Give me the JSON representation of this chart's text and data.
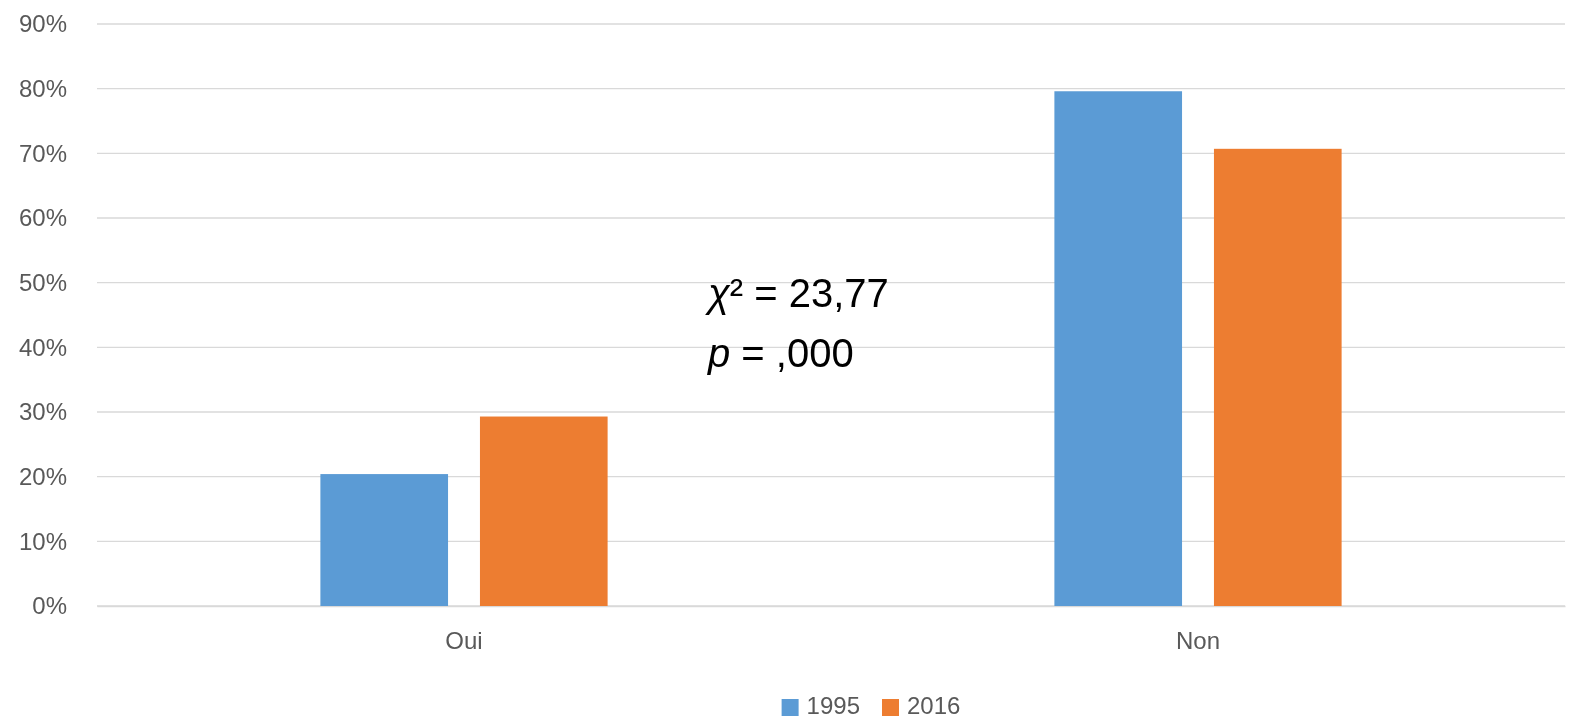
{
  "chart_data": {
    "type": "bar",
    "categories": [
      "Oui",
      "Non"
    ],
    "series": [
      {
        "name": "1995",
        "color": "#5b9bd5",
        "values": [
          20.4,
          79.6
        ]
      },
      {
        "name": "2016",
        "color": "#ed7d31",
        "values": [
          29.3,
          70.7
        ]
      }
    ],
    "ylim": [
      0,
      90
    ],
    "yticks": [
      {
        "value": 0,
        "label": "0%"
      },
      {
        "value": 10,
        "label": "10%"
      },
      {
        "value": 20,
        "label": "20%"
      },
      {
        "value": 30,
        "label": "30%"
      },
      {
        "value": 40,
        "label": "40%"
      },
      {
        "value": 50,
        "label": "50%"
      },
      {
        "value": 60,
        "label": "60%"
      },
      {
        "value": 70,
        "label": "70%"
      },
      {
        "value": 80,
        "label": "80%"
      },
      {
        "value": 90,
        "label": "90%"
      }
    ],
    "grid": "y",
    "legend": "bottom",
    "annotations": [
      "χ² = 23,77",
      "p = ,000"
    ]
  }
}
